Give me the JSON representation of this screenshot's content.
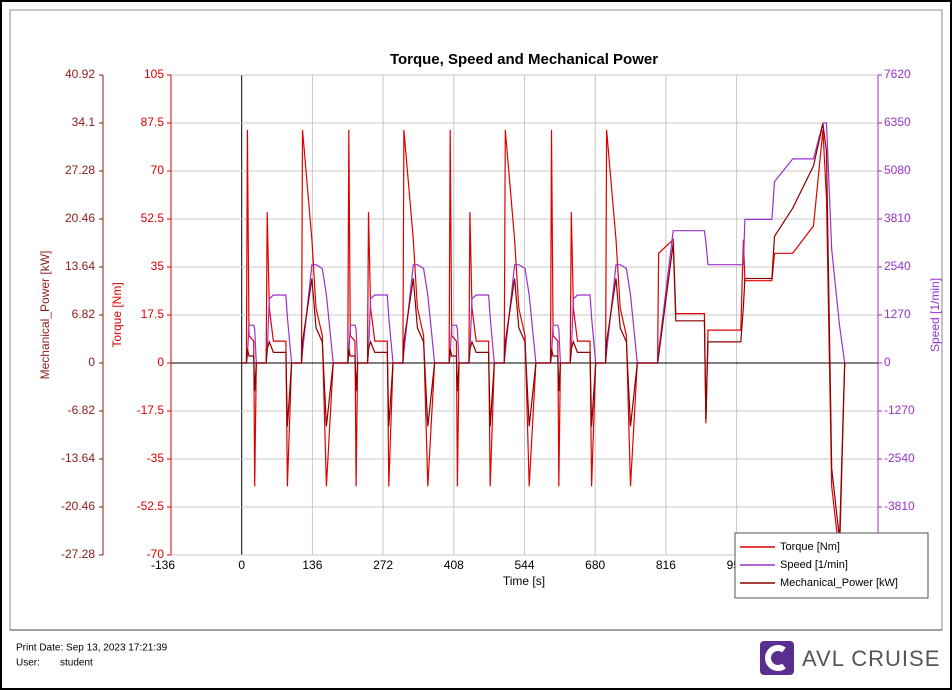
{
  "chart_data": {
    "type": "line",
    "title": "Torque, Speed and Mechanical Power",
    "xlabel": "Time [s]",
    "ylabel": "Torque [Nm]",
    "y2label": "Speed [1/min]",
    "y3label": "Mechanical_Power [kW]",
    "xlim": [
      -136,
      1224
    ],
    "xticks": [
      -136,
      0,
      136,
      272,
      408,
      544,
      680,
      816,
      952
    ],
    "ylim": [
      -70,
      105
    ],
    "yticks": [
      105,
      87.5,
      70,
      52.5,
      35,
      17.5,
      0,
      -17.5,
      -35,
      -52.5,
      -70
    ],
    "y2lim": [
      -5080,
      7620
    ],
    "y2ticks": [
      7620,
      6350,
      5080,
      3810,
      2540,
      1270,
      0,
      -1270,
      -2540,
      -3810
    ],
    "y3lim": [
      -27.28,
      40.92
    ],
    "y3ticks": [
      40.92,
      34.1,
      27.28,
      20.46,
      13.64,
      6.82,
      0,
      -6.82,
      -13.64,
      -20.46,
      -27.28
    ],
    "grid": true,
    "legend": "lower right",
    "x": [
      0,
      9,
      11,
      14,
      23,
      25,
      28,
      47,
      49,
      53,
      61,
      85,
      88,
      96,
      115,
      117,
      135,
      143,
      155,
      163,
      176,
      195,
      204,
      206,
      209,
      218,
      220,
      223,
      242,
      244,
      248,
      256,
      280,
      283,
      291,
      310,
      312,
      330,
      338,
      350,
      358,
      371,
      390,
      399,
      401,
      404,
      413,
      415,
      418,
      437,
      439,
      443,
      451,
      475,
      478,
      486,
      505,
      507,
      525,
      533,
      545,
      553,
      566,
      585,
      594,
      596,
      599,
      608,
      610,
      613,
      632,
      634,
      638,
      646,
      670,
      673,
      681,
      700,
      702,
      720,
      728,
      740,
      748,
      761,
      780,
      800,
      802,
      830,
      835,
      890,
      893,
      897,
      960,
      965,
      968,
      1020,
      1025,
      1060,
      1100,
      1118,
      1125,
      1135,
      1150,
      1160
    ],
    "series": [
      {
        "name": "Torque [Nm]",
        "color": "#e00000",
        "axis": "y",
        "values": [
          0,
          0,
          85,
          10,
          8,
          -45,
          0,
          0,
          55,
          20,
          8,
          8,
          -45,
          0,
          0,
          85,
          45,
          20,
          10,
          -45,
          0,
          0,
          0,
          85,
          10,
          8,
          -45,
          0,
          0,
          55,
          20,
          8,
          8,
          -45,
          0,
          0,
          85,
          45,
          20,
          10,
          -45,
          0,
          0,
          0,
          85,
          10,
          8,
          -45,
          0,
          0,
          55,
          20,
          8,
          8,
          -45,
          0,
          0,
          85,
          45,
          20,
          10,
          -45,
          0,
          0,
          0,
          85,
          10,
          8,
          -45,
          0,
          0,
          55,
          20,
          8,
          8,
          -45,
          0,
          0,
          85,
          45,
          20,
          10,
          -45,
          0,
          0,
          0,
          40,
          45,
          18,
          18,
          -22,
          12,
          12,
          45,
          30,
          30,
          40,
          40,
          50,
          85,
          60,
          -45,
          -70,
          0
        ]
      },
      {
        "name": "Speed [1/min]",
        "color": "#9932cc",
        "axis": "y2",
        "values": [
          0,
          0,
          200,
          1000,
          1000,
          900,
          0,
          0,
          300,
          1700,
          1800,
          1800,
          1200,
          0,
          0,
          300,
          2600,
          2600,
          2500,
          1800,
          0,
          0,
          0,
          200,
          1000,
          1000,
          900,
          0,
          0,
          300,
          1700,
          1800,
          1800,
          1200,
          0,
          0,
          300,
          2600,
          2600,
          2500,
          1800,
          0,
          0,
          0,
          200,
          1000,
          1000,
          900,
          0,
          0,
          300,
          1700,
          1800,
          1800,
          1200,
          0,
          0,
          300,
          2600,
          2600,
          2500,
          1800,
          0,
          0,
          0,
          200,
          1000,
          1000,
          900,
          0,
          0,
          300,
          1700,
          1800,
          1800,
          1200,
          0,
          0,
          300,
          2600,
          2600,
          2500,
          1800,
          0,
          0,
          0,
          300,
          3500,
          3500,
          3500,
          3200,
          2600,
          2600,
          2600,
          3800,
          3800,
          4800,
          5400,
          5400,
          6350,
          6350,
          3000,
          1000,
          0
        ]
      },
      {
        "name": "Mechanical_Power [kW]",
        "color": "#8b0000",
        "axis": "y3",
        "values": [
          0,
          0,
          2,
          1,
          1,
          -4,
          0,
          0,
          2,
          3,
          1.5,
          1.5,
          -9,
          0,
          0,
          3,
          12,
          5,
          3,
          -9,
          0,
          0,
          0,
          2,
          1,
          1,
          -4,
          0,
          0,
          2,
          3,
          1.5,
          1.5,
          -9,
          0,
          0,
          3,
          12,
          5,
          3,
          -9,
          0,
          0,
          0,
          2,
          1,
          1,
          -4,
          0,
          0,
          2,
          3,
          1.5,
          1.5,
          -9,
          0,
          0,
          3,
          12,
          5,
          3,
          -9,
          0,
          0,
          0,
          2,
          1,
          1,
          -4,
          0,
          0,
          2,
          3,
          1.5,
          1.5,
          -9,
          0,
          0,
          3,
          12,
          5,
          3,
          -9,
          0,
          0,
          0,
          1,
          17,
          6,
          6,
          -8,
          3,
          3,
          8,
          12,
          12,
          18,
          22,
          28,
          34,
          30,
          -15,
          -25,
          0
        ]
      }
    ]
  },
  "footer": {
    "print_date": "Print Date: Sep 13, 2023 17:21:39",
    "user_label": "User:",
    "user": "student",
    "brand": "AVL CRUISE"
  }
}
